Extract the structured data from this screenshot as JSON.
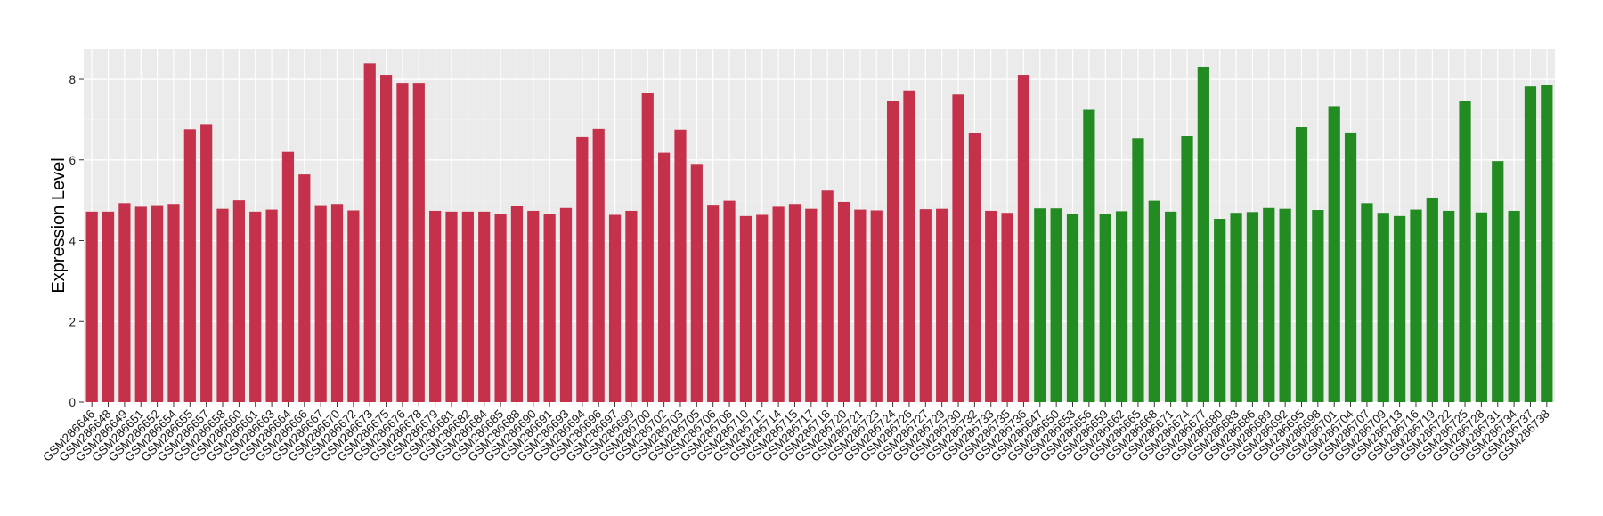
{
  "chart_data": {
    "type": "bar",
    "title": "",
    "xlabel": "",
    "ylabel": "Expression Level",
    "ylim": [
      0,
      8.75
    ],
    "yticks": [
      0,
      2,
      4,
      6,
      8
    ],
    "grid": true,
    "legend": "none",
    "colors": {
      "red": "#C5314B",
      "green": "#228B22",
      "panel": "#EBEBEB",
      "grid_major": "#FFFFFF",
      "grid_minor": "#F2F2F2"
    },
    "series": [
      {
        "color": "red",
        "categories": [
          "GSM286646",
          "GSM286648",
          "GSM286649",
          "GSM286651",
          "GSM286652",
          "GSM286654",
          "GSM286655",
          "GSM286657",
          "GSM286658",
          "GSM286660",
          "GSM286661",
          "GSM286663",
          "GSM286664",
          "GSM286666",
          "GSM286667",
          "GSM286670",
          "GSM286672",
          "GSM286673",
          "GSM286675",
          "GSM286676",
          "GSM286678",
          "GSM286679",
          "GSM286681",
          "GSM286682",
          "GSM286684",
          "GSM286685",
          "GSM286688",
          "GSM286690",
          "GSM286691",
          "GSM286693",
          "GSM286694",
          "GSM286696",
          "GSM286697",
          "GSM286699",
          "GSM286700",
          "GSM286702",
          "GSM286703",
          "GSM286705",
          "GSM286706",
          "GSM286708",
          "GSM286710",
          "GSM286712",
          "GSM286714",
          "GSM286715",
          "GSM286717",
          "GSM286718",
          "GSM286720",
          "GSM286721",
          "GSM286723",
          "GSM286724",
          "GSM286726",
          "GSM286727",
          "GSM286729",
          "GSM286730",
          "GSM286732",
          "GSM286733",
          "GSM286735",
          "GSM286736"
        ],
        "values": [
          4.72,
          4.72,
          4.93,
          4.84,
          4.88,
          4.91,
          6.76,
          6.89,
          4.79,
          5.0,
          4.72,
          4.77,
          6.2,
          5.64,
          4.88,
          4.91,
          4.75,
          8.39,
          8.11,
          7.91,
          7.91,
          4.74,
          4.72,
          4.72,
          4.72,
          4.65,
          4.86,
          4.74,
          4.65,
          4.81,
          6.57,
          6.77,
          4.64,
          4.74,
          7.65,
          6.18,
          6.75,
          5.9,
          4.89,
          4.99,
          4.61,
          4.64,
          4.84,
          4.91,
          4.79,
          5.24,
          4.96,
          4.77,
          4.75,
          7.46,
          7.72,
          4.78,
          4.79,
          7.62,
          6.66,
          4.74,
          4.69,
          8.11
        ]
      },
      {
        "color": "green",
        "categories": [
          "GSM286647",
          "GSM286650",
          "GSM286653",
          "GSM286656",
          "GSM286659",
          "GSM286662",
          "GSM286665",
          "GSM286668",
          "GSM286671",
          "GSM286674",
          "GSM286677",
          "GSM286680",
          "GSM286683",
          "GSM286686",
          "GSM286689",
          "GSM286692",
          "GSM286695",
          "GSM286698",
          "GSM286701",
          "GSM286704",
          "GSM286707",
          "GSM286709",
          "GSM286713",
          "GSM286716",
          "GSM286719",
          "GSM286722",
          "GSM286725",
          "GSM286728",
          "GSM286731",
          "GSM286734",
          "GSM286737",
          "GSM286738"
        ],
        "values": [
          4.8,
          4.8,
          4.67,
          7.24,
          4.66,
          4.73,
          6.54,
          4.99,
          4.72,
          6.59,
          8.31,
          4.54,
          4.69,
          4.71,
          4.81,
          4.79,
          6.81,
          4.76,
          7.33,
          6.68,
          4.93,
          4.69,
          4.61,
          4.77,
          5.07,
          4.74,
          7.45,
          4.7,
          5.97,
          4.74,
          7.82,
          7.86
        ]
      }
    ]
  }
}
